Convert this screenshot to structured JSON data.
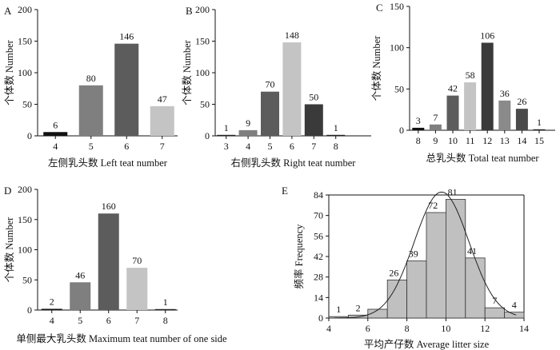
{
  "chart_data": [
    {
      "panel": "A",
      "type": "bar",
      "categories": [
        "4",
        "5",
        "6",
        "7"
      ],
      "values": [
        6,
        80,
        146,
        47
      ],
      "colors": [
        "#111111",
        "#7f7f7f",
        "#5c5c5c",
        "#c4c4c4"
      ],
      "xlabel": "左侧乳头数 Left teat number",
      "ylabel": "个体数 Number",
      "ylim": [
        0,
        200
      ],
      "yticks": [
        0,
        50,
        100,
        150,
        200
      ]
    },
    {
      "panel": "B",
      "type": "bar",
      "categories": [
        "3",
        "4",
        "5",
        "6",
        "7",
        "8"
      ],
      "values": [
        1,
        9,
        70,
        148,
        50,
        1
      ],
      "colors": [
        "#222222",
        "#7f7f7f",
        "#5c5c5c",
        "#c4c4c4",
        "#3a3a3a",
        "#222222"
      ],
      "xlabel": "右侧乳头数 Right teat number",
      "ylabel": "个体数 Number",
      "ylim": [
        0,
        200
      ],
      "yticks": [
        0,
        50,
        100,
        150,
        200
      ]
    },
    {
      "panel": "C",
      "type": "bar",
      "categories": [
        "8",
        "9",
        "10",
        "11",
        "12",
        "13",
        "14",
        "15"
      ],
      "values": [
        3,
        7,
        42,
        58,
        106,
        36,
        26,
        1
      ],
      "colors": [
        "#111111",
        "#7f7f7f",
        "#5c5c5c",
        "#c4c4c4",
        "#3a3a3a",
        "#8a8a8a",
        "#4a4a4a",
        "#222222"
      ],
      "xlabel": "总乳头数 Total teat number",
      "ylabel": "个体数 Number",
      "ylim": [
        0,
        150
      ],
      "yticks": [
        0,
        50,
        100,
        150
      ]
    },
    {
      "panel": "D",
      "type": "bar",
      "categories": [
        "4",
        "5",
        "6",
        "7",
        "8"
      ],
      "values": [
        2,
        46,
        160,
        70,
        1
      ],
      "colors": [
        "#111111",
        "#7f7f7f",
        "#5c5c5c",
        "#c4c4c4",
        "#222222"
      ],
      "xlabel": "单侧最大乳头数 Maximum teat number of one side",
      "ylabel": "个体数 Number",
      "ylim": [
        0,
        200
      ],
      "yticks": [
        0,
        50,
        100,
        150,
        200
      ]
    },
    {
      "panel": "E",
      "type": "histogram",
      "bin_edges": [
        4,
        5,
        6,
        7,
        8,
        9,
        10,
        11,
        12,
        13,
        14
      ],
      "values": [
        1,
        2,
        6,
        26,
        39,
        72,
        81,
        41,
        7,
        4
      ],
      "labels": [
        "1",
        "2",
        "",
        "26",
        "39",
        "72",
        "81",
        "41",
        "7",
        "4"
      ],
      "xlabel": "平均产仔数 Average litter size",
      "ylabel": "频率 Frequency",
      "xlim": [
        4,
        14
      ],
      "xticks": [
        4,
        6,
        8,
        10,
        12,
        14
      ],
      "ylim": [
        0,
        84
      ],
      "yticks": [
        0,
        14,
        28,
        42,
        56,
        70,
        84
      ],
      "fit_curve": "normal"
    }
  ]
}
